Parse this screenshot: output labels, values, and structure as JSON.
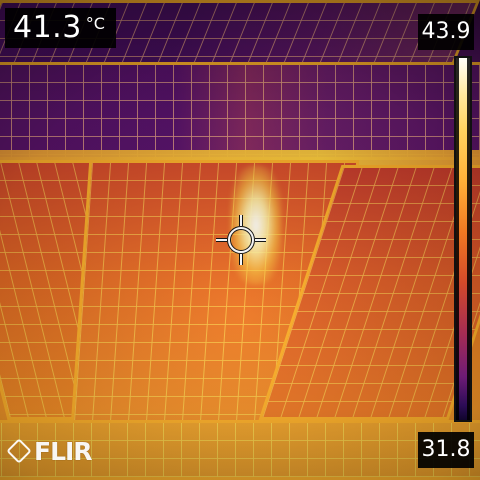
{
  "camera": {
    "reading": {
      "value": "41.3",
      "unit": "°C"
    },
    "scale": {
      "max": "43.9",
      "min": "31.8"
    },
    "brand": {
      "text": "FLIR"
    },
    "icons": {
      "crosshair": "crosshair-icon",
      "logo": "flir-logo-icon"
    },
    "colors": {
      "overlay_bg": "#000000",
      "overlay_text": "#ffffff",
      "hot": "#ffffff",
      "warm": "#f18d25",
      "cool": "#5a136b"
    }
  }
}
